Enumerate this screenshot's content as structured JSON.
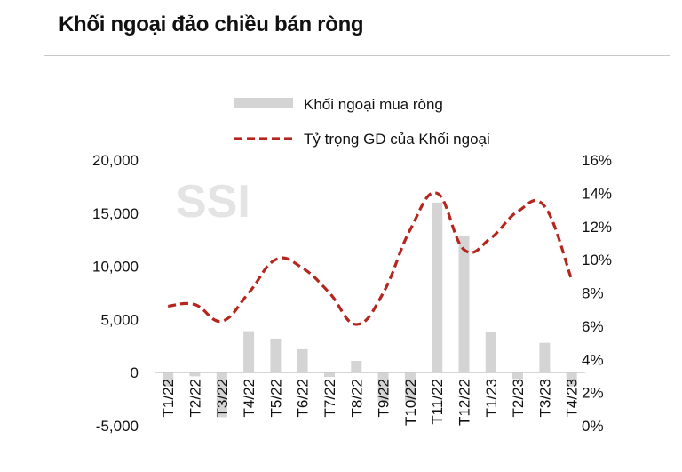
{
  "page": {
    "title": "Khối ngoại đảo chiều bán ròng",
    "watermark": "SSI"
  },
  "chart_data": {
    "type": "bar",
    "categories": [
      "T1/22",
      "T2/22",
      "T3/22",
      "T4/22",
      "T5/22",
      "T6/22",
      "T7/22",
      "T8/22",
      "T9/22",
      "T10/22",
      "T11/22",
      "T12/22",
      "T1/23",
      "T2/23",
      "T3/23",
      "T4/23"
    ],
    "series": [
      {
        "name": "Khối ngoại mua ròng",
        "type": "bar",
        "axis": "left",
        "color": "#d4d4d4",
        "values": [
          -1300,
          -350,
          -4200,
          3900,
          3200,
          2200,
          -400,
          1100,
          -2700,
          -2700,
          16000,
          12900,
          3800,
          -600,
          2800,
          -1300
        ]
      },
      {
        "name": "Tỷ trọng GD của Khối ngoại",
        "type": "line",
        "style": "dashed",
        "axis": "right",
        "color": "#b5261e",
        "values": [
          7.2,
          7.3,
          6.3,
          8.0,
          10.0,
          9.5,
          8.0,
          6.1,
          8.0,
          11.8,
          14.0,
          10.6,
          11.3,
          12.9,
          13.2,
          8.8
        ]
      }
    ],
    "left_axis": {
      "ylim": [
        -5000,
        20000
      ],
      "ticks": [
        "20,000",
        "15,000",
        "10,000",
        "5,000",
        "0",
        "-5,000"
      ],
      "tick_values": [
        20000,
        15000,
        10000,
        5000,
        0,
        -5000
      ]
    },
    "right_axis": {
      "ylim": [
        0,
        16
      ],
      "ticks": [
        "16%",
        "14%",
        "12%",
        "10%",
        "8%",
        "6%",
        "4%",
        "2%",
        "0%"
      ],
      "tick_values": [
        16,
        14,
        12,
        10,
        8,
        6,
        4,
        2,
        0
      ]
    },
    "legend": {
      "placement": "top-center"
    },
    "grid": false
  }
}
